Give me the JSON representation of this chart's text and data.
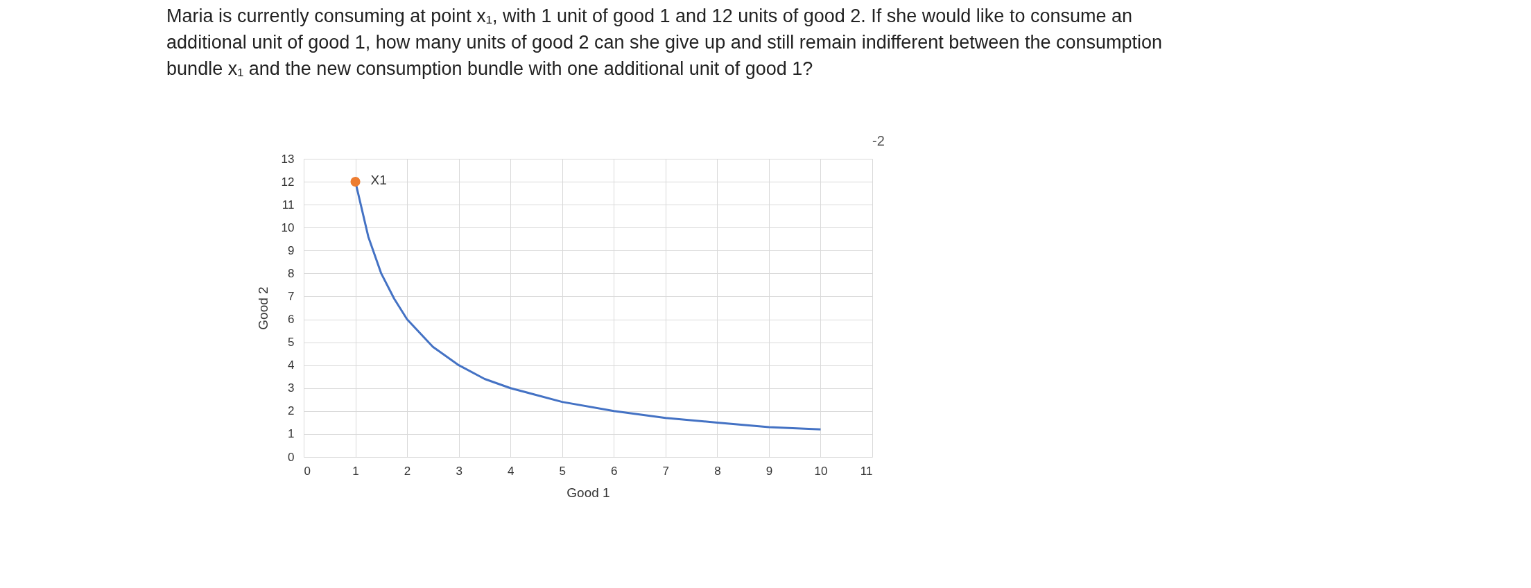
{
  "chart_data": {
    "type": "line",
    "title": "Maria is currently consuming at point x₁, with 1 unit of good 1 and 12 units of good 2. If she would like to consume an additional unit of good 1, how many units of good 2 can she give up and still remain indifferent between the consumption bundle x₁ and the new consumption bundle with one additional unit of good 1?",
    "xlabel": "Good 1",
    "ylabel": "Good 2",
    "series": [
      {
        "color": "#4472c4",
        "marker": "none",
        "x": [
          1,
          1.25,
          1.5,
          1.75,
          2,
          2.5,
          3,
          3.5,
          4,
          5,
          6,
          7,
          8,
          9,
          10
        ],
        "values": [
          12,
          9.6,
          8,
          6.9,
          6,
          4.8,
          4,
          3.4,
          3,
          2.4,
          2,
          1.7,
          1.5,
          1.3,
          1.2
        ]
      },
      {
        "type": "scatter",
        "color": "#ed7d31",
        "marker": "circle",
        "x": [
          1
        ],
        "values": [
          12
        ]
      }
    ],
    "annotations": [
      {
        "text": "X1",
        "x": 1,
        "y": 12
      },
      "-2"
    ],
    "xlim": [
      0,
      11
    ],
    "ylim": [
      0,
      13
    ],
    "xticks": [
      0,
      1,
      2,
      3,
      4,
      5,
      6,
      7,
      8,
      9,
      10,
      11
    ],
    "yticks": [
      0,
      1,
      2,
      3,
      4,
      5,
      6,
      7,
      8,
      9,
      10,
      11,
      12,
      13
    ],
    "grid": true,
    "line_style": "solid"
  }
}
